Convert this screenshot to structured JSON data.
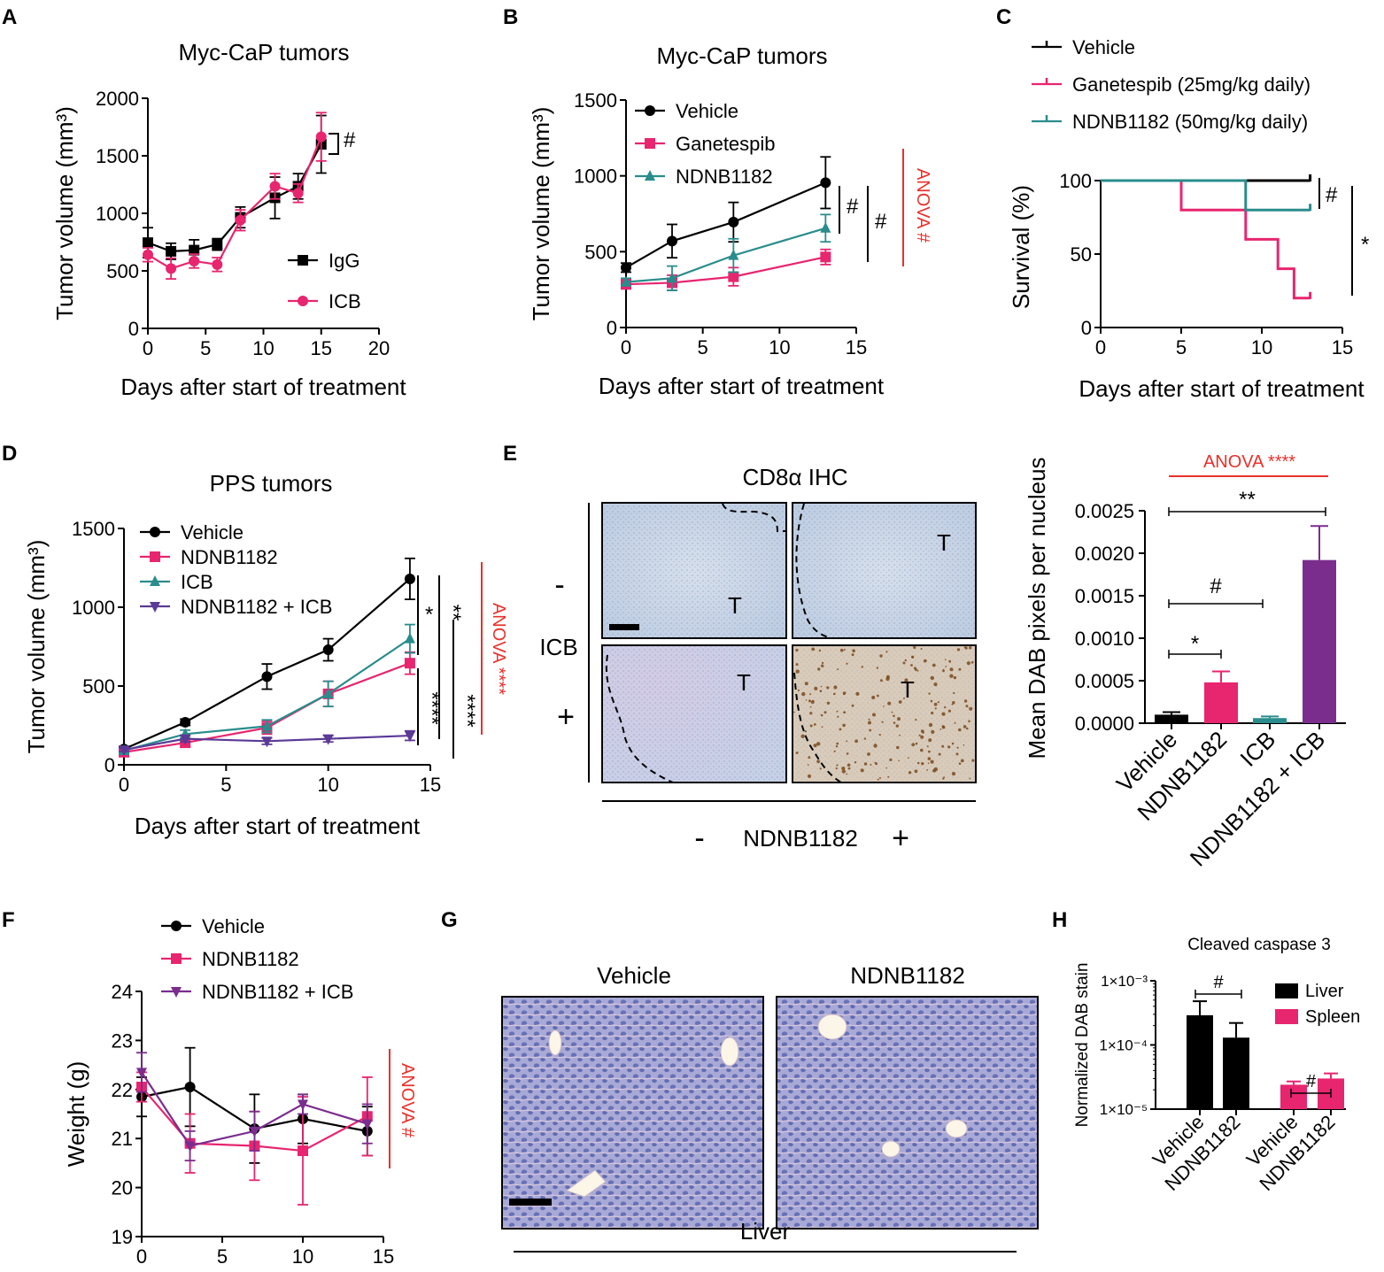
{
  "panel_labels": {
    "A": "A",
    "B": "B",
    "C": "C",
    "D": "D",
    "E": "E",
    "F": "F",
    "G": "G",
    "H": "H"
  },
  "colors": {
    "vehicle": "#000000",
    "pink": "#e8256f",
    "teal": "#2a8c8c",
    "purple": "#5b3a96",
    "violet": "#7b2d8e",
    "anova": "#e8312b",
    "tissue_blue": "#c9d6e8",
    "tissue_pink": "#d8c4de",
    "tissue_liver": "#7f88c4"
  },
  "chart_data": [
    {
      "id": "A",
      "type": "line",
      "title": "Myc-CaP tumors",
      "xlabel": "Days after start of treatment",
      "ylabel": "Tumor volume (mm³)",
      "xlim": [
        0,
        20
      ],
      "ylim": [
        0,
        2000
      ],
      "xticks": [
        "0",
        "5",
        "10",
        "15",
        "20"
      ],
      "yticks": [
        "0",
        "500",
        "1000",
        "1500",
        "2000"
      ],
      "series": [
        {
          "name": "IgG",
          "color": "#000000",
          "marker": "square",
          "x": [
            0,
            2,
            4,
            6,
            8,
            11,
            13,
            15
          ],
          "y": [
            745,
            670,
            680,
            730,
            965,
            1135,
            1235,
            1600
          ],
          "err": [
            130,
            70,
            90,
            50,
            90,
            180,
            110,
            250
          ]
        },
        {
          "name": "ICB",
          "color": "#e8256f",
          "marker": "circle",
          "x": [
            0,
            2,
            4,
            6,
            8,
            11,
            13,
            15
          ],
          "y": [
            640,
            520,
            585,
            555,
            940,
            1235,
            1175,
            1665
          ],
          "err": [
            60,
            90,
            60,
            60,
            90,
            110,
            80,
            210
          ]
        }
      ],
      "annotations": [
        {
          "text": "#",
          "between": [
            "IgG",
            "ICB"
          ]
        }
      ]
    },
    {
      "id": "B",
      "type": "line",
      "title": "Myc-CaP tumors",
      "xlabel": "Days after start of treatment",
      "ylabel": "Tumor volume (mm³)",
      "xlim": [
        0,
        15
      ],
      "ylim": [
        0,
        1500
      ],
      "xticks": [
        "0",
        "5",
        "10",
        "15"
      ],
      "yticks": [
        "0",
        "500",
        "1000",
        "1500"
      ],
      "series": [
        {
          "name": "Vehicle",
          "color": "#000000",
          "marker": "circle",
          "x": [
            0,
            3,
            7,
            13
          ],
          "y": [
            395,
            570,
            695,
            955
          ],
          "err": [
            30,
            110,
            130,
            170
          ]
        },
        {
          "name": "Ganetespib",
          "color": "#e8256f",
          "marker": "square",
          "x": [
            0,
            3,
            7,
            13
          ],
          "y": [
            285,
            295,
            335,
            465
          ],
          "err": [
            30,
            50,
            60,
            50
          ]
        },
        {
          "name": "NDNB1182",
          "color": "#2a8c8c",
          "marker": "triangle",
          "x": [
            0,
            3,
            7,
            13
          ],
          "y": [
            300,
            325,
            475,
            655
          ],
          "err": [
            25,
            80,
            110,
            90
          ]
        }
      ],
      "annotations": [
        {
          "text": "#"
        },
        {
          "text": "#"
        },
        {
          "text": "ANOVA #"
        }
      ]
    },
    {
      "id": "C",
      "type": "line",
      "subtype": "survival",
      "xlabel": "Days after start of treatment",
      "ylabel": "Survival (%)",
      "xlim": [
        0,
        15
      ],
      "ylim": [
        0,
        100
      ],
      "xticks": [
        "0",
        "5",
        "10",
        "15"
      ],
      "yticks": [
        "0",
        "50",
        "100"
      ],
      "series": [
        {
          "name": "Vehicle",
          "color": "#000000",
          "steps": [
            [
              0,
              100
            ],
            [
              13,
              100
            ]
          ]
        },
        {
          "name": "Ganetespib (25mg/kg daily)",
          "color": "#e8256f",
          "steps": [
            [
              0,
              100
            ],
            [
              5,
              100
            ],
            [
              5,
              80
            ],
            [
              9,
              80
            ],
            [
              9,
              60
            ],
            [
              11,
              60
            ],
            [
              11,
              40
            ],
            [
              12,
              40
            ],
            [
              12,
              20
            ],
            [
              13,
              20
            ]
          ]
        },
        {
          "name": "NDNB1182 (50mg/kg daily)",
          "color": "#2a8c8c",
          "steps": [
            [
              0,
              100
            ],
            [
              9,
              100
            ],
            [
              9,
              80
            ],
            [
              13,
              80
            ]
          ]
        }
      ],
      "annotations": [
        {
          "text": "#"
        },
        {
          "text": "*"
        }
      ]
    },
    {
      "id": "D",
      "type": "line",
      "title": "PPS tumors",
      "xlabel": "Days after start of treatment",
      "ylabel": "Tumor volume (mm³)",
      "xlim": [
        0,
        15
      ],
      "ylim": [
        0,
        1500
      ],
      "xticks": [
        "0",
        "5",
        "10",
        "15"
      ],
      "yticks": [
        "0",
        "500",
        "1000",
        "1500"
      ],
      "series": [
        {
          "name": "Vehicle",
          "color": "#000000",
          "marker": "circle",
          "x": [
            0,
            3,
            7,
            10,
            14
          ],
          "y": [
            100,
            270,
            560,
            730,
            1180
          ],
          "err": [
            15,
            20,
            80,
            70,
            130
          ]
        },
        {
          "name": "NDNB1182",
          "color": "#e8256f",
          "marker": "square",
          "x": [
            0,
            3,
            7,
            10,
            14
          ],
          "y": [
            80,
            140,
            235,
            450,
            645
          ],
          "err": [
            15,
            25,
            40,
            80,
            70
          ]
        },
        {
          "name": "ICB",
          "color": "#2a8c8c",
          "marker": "triangle",
          "x": [
            0,
            3,
            7,
            10,
            14
          ],
          "y": [
            90,
            195,
            245,
            450,
            800
          ],
          "err": [
            15,
            25,
            40,
            80,
            90
          ]
        },
        {
          "name": "NDNB1182 + ICB",
          "color": "#5b3a96",
          "marker": "triangle-down",
          "x": [
            0,
            3,
            7,
            10,
            14
          ],
          "y": [
            95,
            165,
            150,
            165,
            185
          ],
          "err": [
            10,
            20,
            20,
            20,
            30
          ]
        }
      ],
      "annotations": [
        {
          "text": "*"
        },
        {
          "text": "**"
        },
        {
          "text": "****"
        },
        {
          "text": "****"
        },
        {
          "text": "ANOVA ****"
        }
      ]
    },
    {
      "id": "E_bar",
      "type": "bar",
      "ylabel": "Mean DAB pixels per nucleus",
      "categories": [
        "Vehicle",
        "NDNB1182",
        "ICB",
        "NDNB1182 + ICB"
      ],
      "values": [
        0.0001,
        0.00048,
        6e-05,
        0.00192
      ],
      "errors": [
        3e-05,
        0.00013,
        2e-05,
        0.0004
      ],
      "colors": [
        "#000000",
        "#e8256f",
        "#2a8c8c",
        "#7b2d8e"
      ],
      "ylim": [
        0,
        0.0025
      ],
      "yticks": [
        "0.0000",
        "0.0005",
        "0.0010",
        "0.0015",
        "0.0020",
        "0.0025"
      ],
      "annotations": [
        {
          "text": "ANOVA ****"
        },
        {
          "text": "**"
        },
        {
          "text": "#"
        },
        {
          "text": "*"
        }
      ]
    },
    {
      "id": "F",
      "type": "line",
      "xlabel": "Days after start of treatment",
      "ylabel": "Weight (g)",
      "xlim": [
        0,
        15
      ],
      "ylim": [
        19,
        24
      ],
      "xticks": [
        "0",
        "5",
        "10",
        "15"
      ],
      "yticks": [
        "19",
        "20",
        "21",
        "22",
        "23",
        "24"
      ],
      "series": [
        {
          "name": "Vehicle",
          "color": "#000000",
          "marker": "circle",
          "x": [
            0,
            3,
            7,
            10,
            14
          ],
          "y": [
            21.85,
            22.05,
            21.2,
            21.4,
            21.15
          ],
          "err": [
            0.4,
            0.8,
            0.7,
            0.5,
            0.5
          ]
        },
        {
          "name": "NDNB1182",
          "color": "#e8256f",
          "marker": "square",
          "x": [
            0,
            3,
            7,
            10,
            14
          ],
          "y": [
            22.05,
            20.9,
            20.85,
            20.75,
            21.45
          ],
          "err": [
            0.3,
            0.6,
            0.7,
            1.1,
            0.8
          ]
        },
        {
          "name": "NDNB1182 + ICB",
          "color": "#7b2d8e",
          "marker": "triangle-down",
          "x": [
            0,
            3,
            7,
            10,
            14
          ],
          "y": [
            22.35,
            20.85,
            21.15,
            21.7,
            21.3
          ],
          "err": [
            0.4,
            0.3,
            0.4,
            0.2,
            0.4
          ]
        }
      ],
      "annotations": [
        {
          "text": "ANOVA #"
        }
      ]
    },
    {
      "id": "H",
      "type": "bar",
      "title": "Cleaved caspase 3",
      "ylabel": "Normalized DAB stain",
      "yscale": "log",
      "ylim": [
        1e-05,
        0.001
      ],
      "yticks": [
        "1×10⁻⁵",
        "1×10⁻⁴",
        "1×10⁻³"
      ],
      "groups": [
        "Liver",
        "Spleen"
      ],
      "categories": [
        "Vehicle",
        "NDNB1182",
        "Vehicle",
        "NDNB1182"
      ],
      "group_of": [
        0,
        0,
        1,
        1
      ],
      "values": [
        0.00029,
        0.00013,
        2.4e-05,
        3e-05
      ],
      "errors_hi": [
        0.00048,
        0.00022,
        2.7e-05,
        3.6e-05
      ],
      "colors": [
        "#000000",
        "#000000",
        "#e8256f",
        "#e8256f"
      ],
      "legend": [
        "Liver",
        "Spleen"
      ],
      "annotations": [
        {
          "text": "#"
        },
        {
          "text": "#"
        }
      ]
    }
  ],
  "panel_E": {
    "title": "CD8α IHC",
    "row_minus": "-",
    "row_plus": "+",
    "row_label": "ICB",
    "col_minus": "-",
    "col_label": "NDNB1182",
    "col_plus": "+",
    "tumor_label": "T"
  },
  "panel_G": {
    "label_vehicle": "Vehicle",
    "label_ndnb": "NDNB1182",
    "bottom_label": "Liver"
  }
}
